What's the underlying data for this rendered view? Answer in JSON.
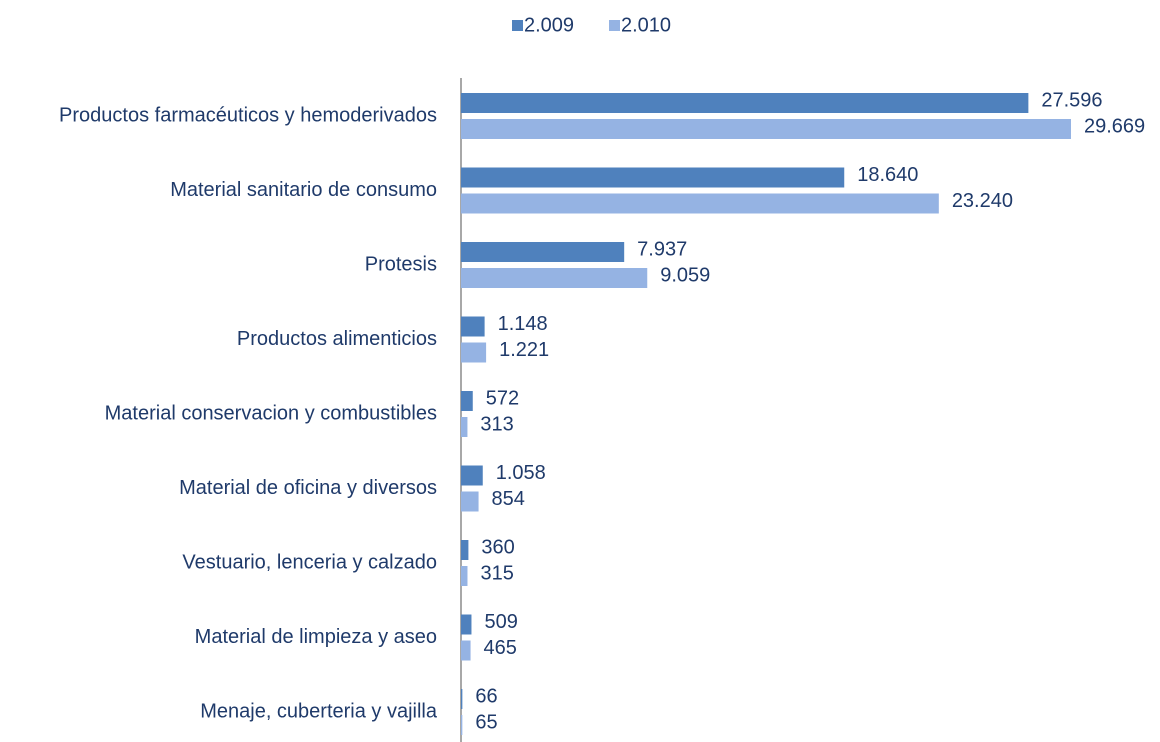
{
  "chart_data": {
    "type": "bar",
    "orientation": "horizontal",
    "categories": [
      "Productos farmacéuticos y hemoderivados",
      "Material sanitario de consumo",
      "Protesis",
      "Productos alimenticios",
      "Material conservacion y combustibles",
      "Material de oficina y diversos",
      "Vestuario, lenceria y calzado",
      "Material de limpieza y aseo",
      "Menaje, cuberteria y vajilla"
    ],
    "series": [
      {
        "name": "2.009",
        "color": "#4f81bd",
        "values": [
          27596,
          18640,
          7937,
          1148,
          572,
          1058,
          360,
          509,
          66
        ],
        "value_labels": [
          "27.596",
          "18.640",
          "7.937",
          "1.148",
          "572",
          "1.058",
          "360",
          "509",
          "66"
        ]
      },
      {
        "name": "2.010",
        "color": "#95b3e3",
        "values": [
          29669,
          23240,
          9059,
          1221,
          313,
          854,
          315,
          465,
          65
        ],
        "value_labels": [
          "29.669",
          "23.240",
          "9.059",
          "1.221",
          "313",
          "854",
          "315",
          "465",
          "65"
        ]
      }
    ],
    "legend": "top"
  }
}
